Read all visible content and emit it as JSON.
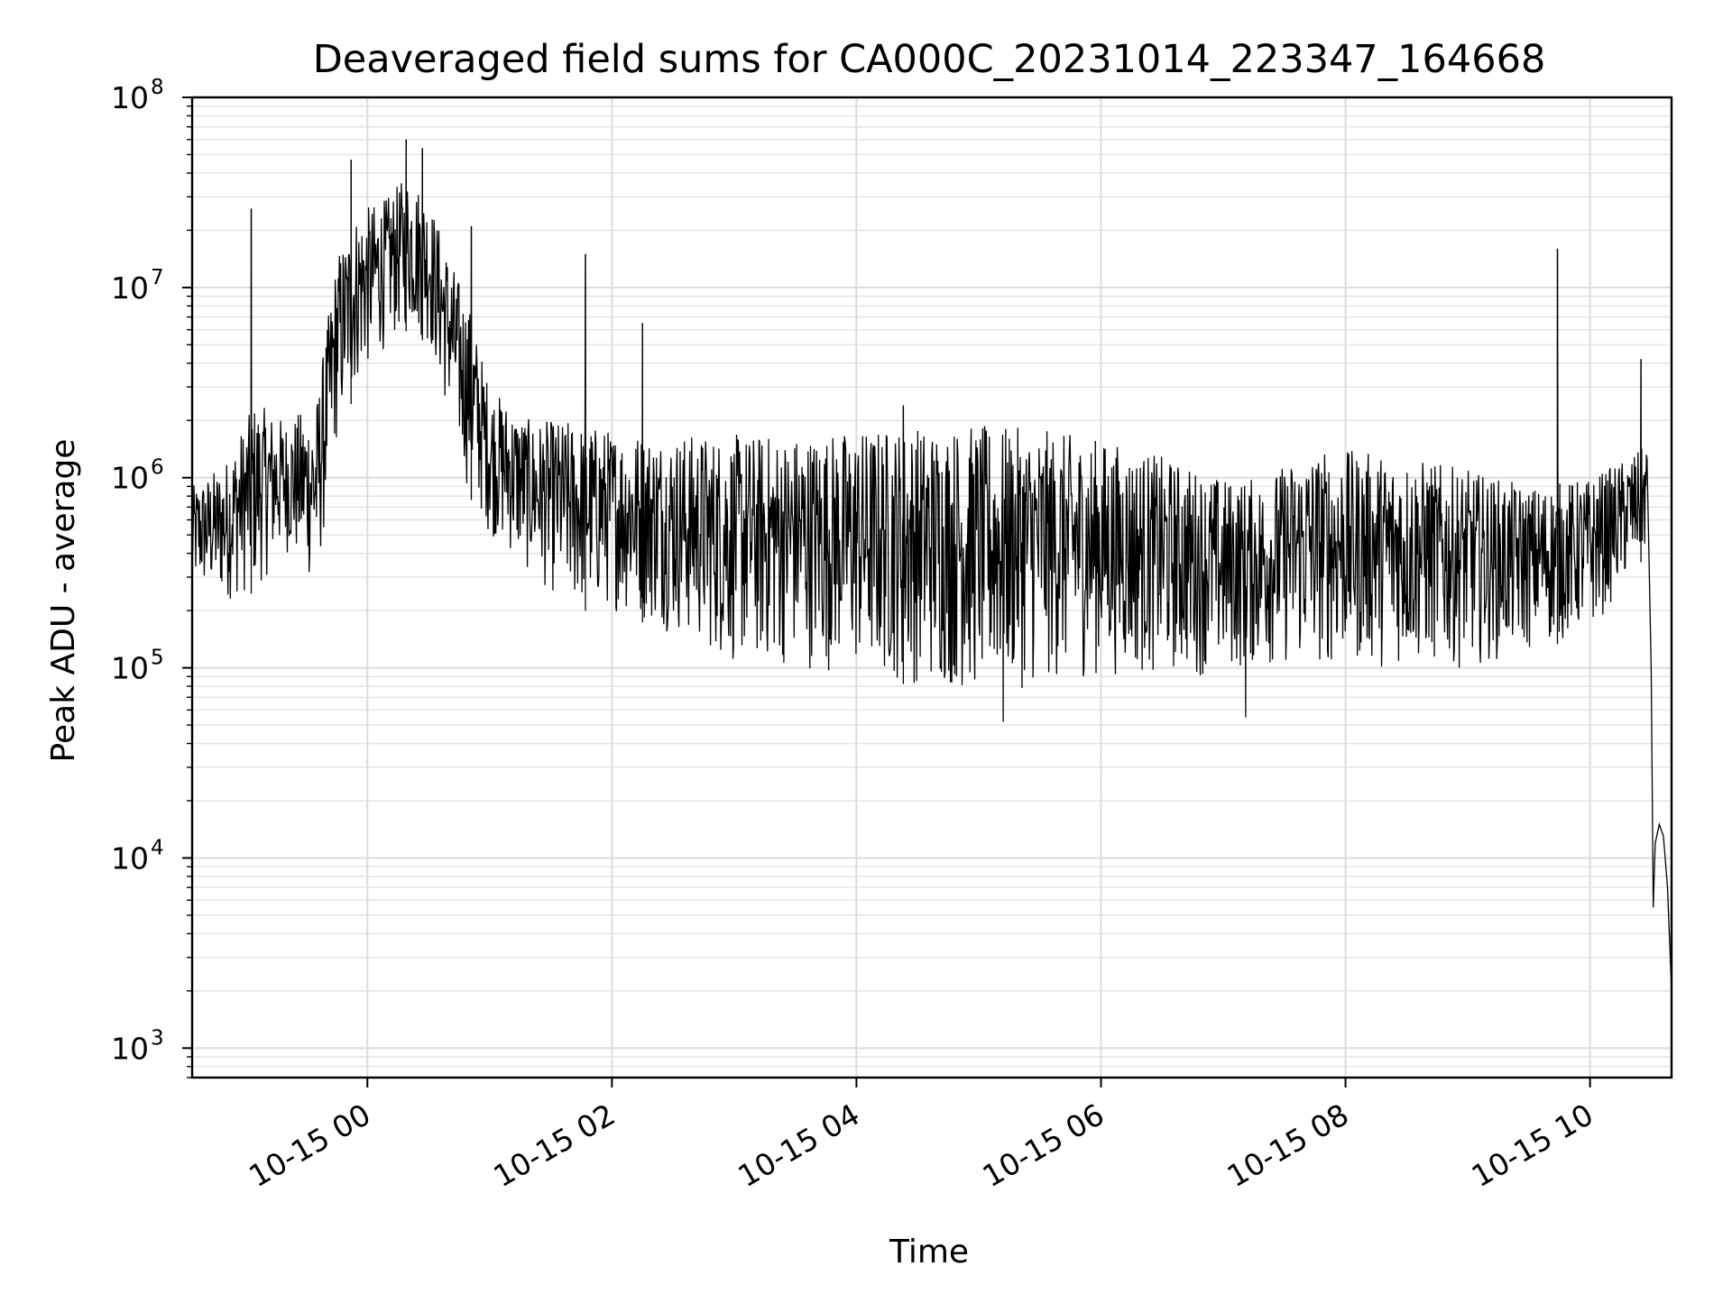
{
  "chart_data": {
    "type": "line",
    "title": "Deaveraged field sums for CA000C_20231014_223347_164668",
    "xlabel": "Time",
    "ylabel": "Peak ADU - average",
    "yscale": "log",
    "ylim": [
      700,
      100000000
    ],
    "xlim": [
      "2023-10-14 22:34",
      "2023-10-15 10:40"
    ],
    "grid": true,
    "x_ticks": [
      {
        "label": "10-15 00",
        "value": "2023-10-15 00:00"
      },
      {
        "label": "10-15 02",
        "value": "2023-10-15 02:00"
      },
      {
        "label": "10-15 04",
        "value": "2023-10-15 04:00"
      },
      {
        "label": "10-15 06",
        "value": "2023-10-15 06:00"
      },
      {
        "label": "10-15 08",
        "value": "2023-10-15 08:00"
      },
      {
        "label": "10-15 10",
        "value": "2023-10-15 10:00"
      }
    ],
    "y_ticks": [
      {
        "base": "10",
        "exp": "3",
        "value": 1000
      },
      {
        "base": "10",
        "exp": "4",
        "value": 10000
      },
      {
        "base": "10",
        "exp": "5",
        "value": 100000
      },
      {
        "base": "10",
        "exp": "6",
        "value": 1000000
      },
      {
        "base": "10",
        "exp": "7",
        "value": 10000000
      },
      {
        "base": "10",
        "exp": "8",
        "value": 100000000
      }
    ],
    "series": [
      {
        "color": "#000000",
        "envelope_points": [
          {
            "x": "2023-10-14 22:34",
            "low": 250000,
            "high": 900000
          },
          {
            "x": "2023-10-14 22:50",
            "low": 220000,
            "high": 1200000
          },
          {
            "x": "2023-10-14 23:05",
            "low": 250000,
            "high": 2500000
          },
          {
            "x": "2023-10-14 23:20",
            "low": 400000,
            "high": 2000000
          },
          {
            "x": "2023-10-14 23:35",
            "low": 250000,
            "high": 2500000
          },
          {
            "x": "2023-10-14 23:45",
            "low": 1500000,
            "high": 15000000
          },
          {
            "x": "2023-10-14 23:55",
            "low": 3000000,
            "high": 25000000
          },
          {
            "x": "2023-10-15 00:10",
            "low": 5000000,
            "high": 30000000
          },
          {
            "x": "2023-10-15 00:20",
            "low": 6000000,
            "high": 40000000
          },
          {
            "x": "2023-10-15 00:30",
            "low": 5000000,
            "high": 30000000
          },
          {
            "x": "2023-10-15 00:40",
            "low": 2000000,
            "high": 15000000
          },
          {
            "x": "2023-10-15 00:50",
            "low": 800000,
            "high": 8000000
          },
          {
            "x": "2023-10-15 01:00",
            "low": 500000,
            "high": 3000000
          },
          {
            "x": "2023-10-15 01:20",
            "low": 300000,
            "high": 2000000
          },
          {
            "x": "2023-10-15 01:40",
            "low": 200000,
            "high": 2000000
          },
          {
            "x": "2023-10-15 02:00",
            "low": 200000,
            "high": 1800000
          },
          {
            "x": "2023-10-15 02:30",
            "low": 150000,
            "high": 1700000
          },
          {
            "x": "2023-10-15 03:00",
            "low": 100000,
            "high": 1700000
          },
          {
            "x": "2023-10-15 03:30",
            "low": 100000,
            "high": 1700000
          },
          {
            "x": "2023-10-15 04:00",
            "low": 90000,
            "high": 1800000
          },
          {
            "x": "2023-10-15 04:30",
            "low": 80000,
            "high": 1900000
          },
          {
            "x": "2023-10-15 05:00",
            "low": 70000,
            "high": 1900000
          },
          {
            "x": "2023-10-15 05:30",
            "low": 80000,
            "high": 1800000
          },
          {
            "x": "2023-10-15 06:00",
            "low": 90000,
            "high": 1600000
          },
          {
            "x": "2023-10-15 06:30",
            "low": 90000,
            "high": 1300000
          },
          {
            "x": "2023-10-15 07:00",
            "low": 90000,
            "high": 1000000
          },
          {
            "x": "2023-10-15 07:20",
            "low": 100000,
            "high": 1000000
          },
          {
            "x": "2023-10-15 07:40",
            "low": 100000,
            "high": 1400000
          },
          {
            "x": "2023-10-15 08:00",
            "low": 100000,
            "high": 1400000
          },
          {
            "x": "2023-10-15 08:30",
            "low": 100000,
            "high": 1300000
          },
          {
            "x": "2023-10-15 09:00",
            "low": 100000,
            "high": 1100000
          },
          {
            "x": "2023-10-15 09:30",
            "low": 120000,
            "high": 900000
          },
          {
            "x": "2023-10-15 10:00",
            "low": 150000,
            "high": 1000000
          },
          {
            "x": "2023-10-15 10:20",
            "low": 300000,
            "high": 1300000
          },
          {
            "x": "2023-10-15 10:28",
            "low": 400000,
            "high": 1500000
          }
        ],
        "spikes": [
          {
            "x": "2023-10-14 23:03",
            "y": 26000000
          },
          {
            "x": "2023-10-14 23:52",
            "y": 47000000
          },
          {
            "x": "2023-10-15 00:19",
            "y": 60000000
          },
          {
            "x": "2023-10-15 00:27",
            "y": 54000000
          },
          {
            "x": "2023-10-15 00:51",
            "y": 21000000
          },
          {
            "x": "2023-10-15 01:47",
            "y": 15000000
          },
          {
            "x": "2023-10-15 02:15",
            "y": 6500000
          },
          {
            "x": "2023-10-15 04:23",
            "y": 2400000
          },
          {
            "x": "2023-10-15 05:12",
            "y": 52000
          },
          {
            "x": "2023-10-15 07:11",
            "y": 55000
          },
          {
            "x": "2023-10-15 09:44",
            "y": 16000000
          },
          {
            "x": "2023-10-15 10:25",
            "y": 4200000
          }
        ],
        "tail": [
          {
            "x": "2023-10-15 10:28",
            "y": 1200000
          },
          {
            "x": "2023-10-15 10:30",
            "y": 100000
          },
          {
            "x": "2023-10-15 10:31",
            "y": 5500
          },
          {
            "x": "2023-10-15 10:32",
            "y": 12000
          },
          {
            "x": "2023-10-15 10:34",
            "y": 15000
          },
          {
            "x": "2023-10-15 10:36",
            "y": 13000
          },
          {
            "x": "2023-10-15 10:38",
            "y": 7000
          },
          {
            "x": "2023-10-15 10:40",
            "y": 2000
          }
        ]
      }
    ]
  }
}
